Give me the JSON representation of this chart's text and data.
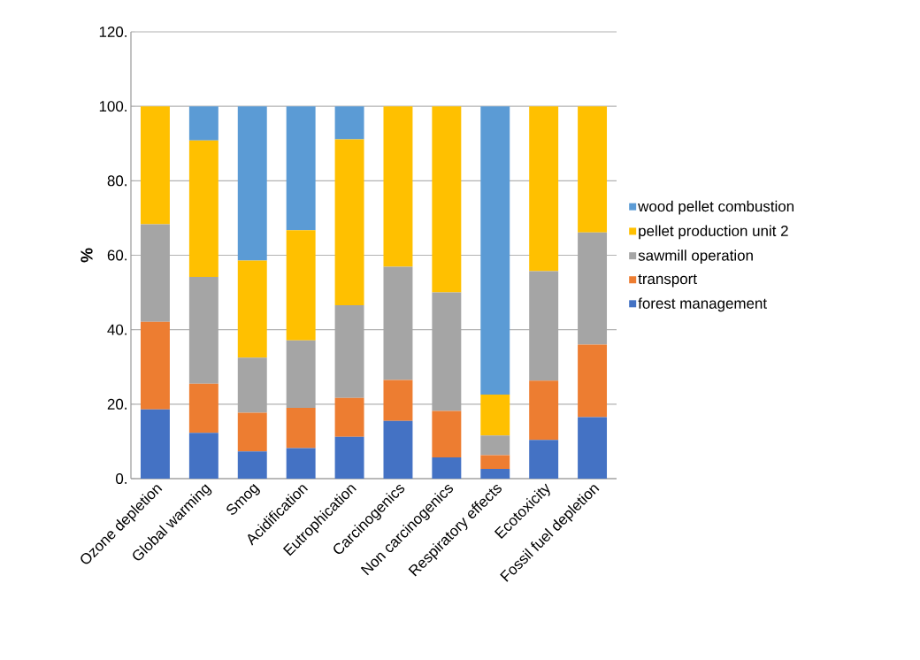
{
  "chart_data": {
    "type": "bar",
    "stacked": true,
    "ylabel": "%",
    "categories": [
      "Ozone depletion",
      "Global warming",
      "Smog",
      "Acidification",
      "Eutrophication",
      "Carcinogenics",
      "Non carcinogenics",
      "Respiratory effects",
      "Ecotoxicity",
      "Fossil fuel depletion"
    ],
    "series": [
      {
        "name": "forest management",
        "color": "#4472c4",
        "values": [
          18.6,
          12.3,
          7.3,
          8.2,
          11.2,
          15.5,
          5.7,
          2.6,
          10.4,
          16.5
        ]
      },
      {
        "name": "transport",
        "color": "#ed7d31",
        "values": [
          23.5,
          13.2,
          10.4,
          10.8,
          10.5,
          11.0,
          12.5,
          3.7,
          15.9,
          19.5
        ]
      },
      {
        "name": "sawmill operation",
        "color": "#a5a5a5",
        "values": [
          26.2,
          28.7,
          14.8,
          18.1,
          24.9,
          30.4,
          31.8,
          5.3,
          29.4,
          30.1
        ]
      },
      {
        "name": "pellet production unit 2",
        "color": "#ffc000",
        "values": [
          31.7,
          36.6,
          26.1,
          29.6,
          44.5,
          43.1,
          50.0,
          11.0,
          44.3,
          33.9
        ]
      },
      {
        "name": "wood pellet combustion",
        "color": "#5b9bd5",
        "values": [
          0,
          9.2,
          41.4,
          33.3,
          8.9,
          0,
          0,
          77.4,
          0,
          0
        ]
      }
    ],
    "ylim": [
      0,
      120
    ],
    "yticks": [
      {
        "value": 0,
        "label": "0."
      },
      {
        "value": 20,
        "label": "20."
      },
      {
        "value": 40,
        "label": "40."
      },
      {
        "value": 60,
        "label": "60."
      },
      {
        "value": 80,
        "label": "80."
      },
      {
        "value": 100,
        "label": "100."
      },
      {
        "value": 120,
        "label": "120."
      }
    ],
    "grid": "y",
    "legend": "right"
  }
}
